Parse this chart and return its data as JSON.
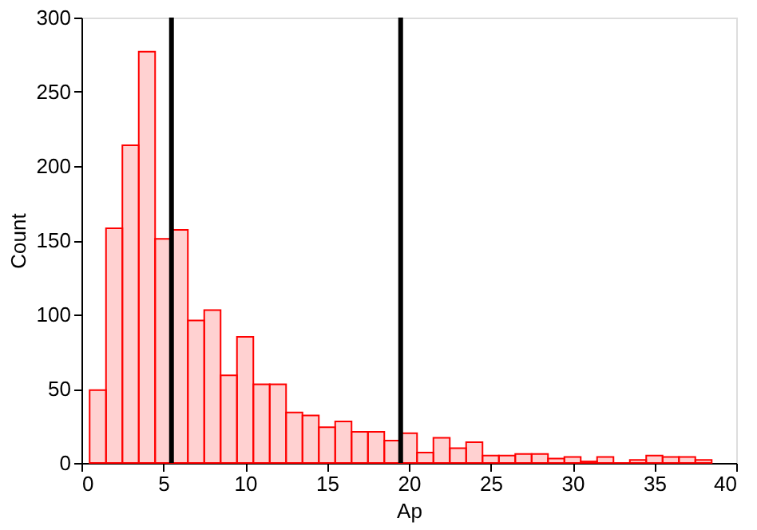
{
  "chart_data": {
    "type": "histogram",
    "xlabel": "Ap",
    "ylabel": "Count",
    "bins": [
      0.5,
      1.5,
      2.5,
      3.5,
      4.5,
      5.5,
      6.5,
      7.5,
      8.5,
      9.5,
      10.5,
      11.5,
      12.5,
      13.5,
      14.5,
      15.5,
      16.5,
      17.5,
      18.5,
      19.5,
      20.5,
      21.5,
      22.5,
      23.5,
      24.5,
      25.5,
      26.5,
      27.5,
      28.5,
      29.5,
      30.5,
      31.5,
      32.5,
      33.5,
      34.5,
      35.5,
      36.5,
      37.5,
      38.5
    ],
    "values": [
      49,
      158,
      214,
      277,
      151,
      157,
      96,
      103,
      59,
      85,
      53,
      53,
      34,
      32,
      24,
      28,
      21,
      21,
      15,
      20,
      7,
      17,
      10,
      14,
      5,
      5,
      6,
      6,
      3,
      4,
      1,
      4,
      0,
      2,
      5,
      4,
      4,
      2
    ],
    "color": "#ff0000",
    "xlim": [
      0,
      40
    ],
    "xticks": [
      0,
      5,
      10,
      15,
      20,
      25,
      30,
      35,
      40
    ],
    "ylim": [
      0,
      300
    ],
    "yticks": [
      0,
      50,
      100,
      150,
      200,
      250,
      300
    ],
    "grid": false,
    "ref_lines": [
      {
        "axis": "x",
        "value": 5.5,
        "color": "#000000"
      },
      {
        "axis": "x",
        "value": 19.5,
        "color": "#000000"
      }
    ]
  }
}
